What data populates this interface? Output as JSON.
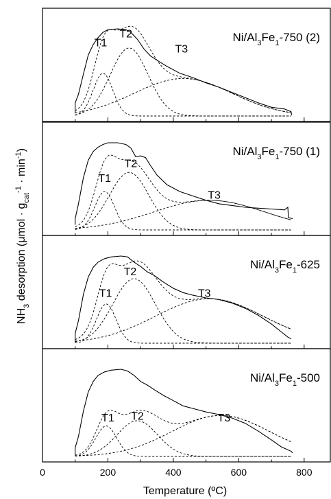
{
  "chart_data": {
    "type": "line",
    "xlabel": "Temperature (ºC)",
    "ylabel": {
      "main": "NH",
      "sub1": "3",
      "rest": " desorption (μmol · g",
      "sub2": "cat",
      "sup1": "-1",
      "mid": " · min",
      "sup2": "-1",
      "end": ")"
    },
    "xlim": [
      0,
      880
    ],
    "xticks": [
      "0",
      "200",
      "400",
      "600",
      "800"
    ],
    "xtick_values": [
      0,
      200,
      400,
      600,
      800
    ],
    "panels": [
      {
        "label": {
          "pre": "Ni/Al",
          "s1": "3",
          "mid": "Fe",
          "s2": "1",
          "post": "-750 (2)"
        },
        "peak_labels": [
          {
            "text": "T1",
            "x": 178,
            "y": 0.8
          },
          {
            "text": "T2",
            "x": 255,
            "y": 0.9
          },
          {
            "text": "T3",
            "x": 425,
            "y": 0.73
          }
        ],
        "total": [
          [
            100,
            0.03
          ],
          [
            100,
            0.15
          ],
          [
            110,
            0.25
          ],
          [
            125,
            0.48
          ],
          [
            140,
            0.7
          ],
          [
            155,
            0.82
          ],
          [
            170,
            0.9
          ],
          [
            185,
            0.96
          ],
          [
            200,
            0.99
          ],
          [
            230,
            1.0
          ],
          [
            255,
            0.99
          ],
          [
            270,
            0.96
          ],
          [
            290,
            0.88
          ],
          [
            310,
            0.77
          ],
          [
            330,
            0.69
          ],
          [
            350,
            0.64
          ],
          [
            380,
            0.57
          ],
          [
            420,
            0.49
          ],
          [
            460,
            0.44
          ],
          [
            500,
            0.38
          ],
          [
            540,
            0.33
          ],
          [
            580,
            0.27
          ],
          [
            620,
            0.21
          ],
          [
            660,
            0.15
          ],
          [
            700,
            0.1
          ],
          [
            740,
            0.08
          ],
          [
            760,
            0.05
          ],
          [
            762,
            0.01
          ]
        ],
        "peaks": [
          {
            "name": "T1",
            "center": 185,
            "height": 0.49,
            "width": 30
          },
          {
            "name": "T2",
            "center": 265,
            "height": 0.78,
            "width": 58
          },
          {
            "name": "T3",
            "center": 430,
            "height": 0.43,
            "width": 150
          }
        ]
      },
      {
        "label": {
          "pre": "Ni/Al",
          "s1": "3",
          "mid": "Fe",
          "s2": "1",
          "post": "-750 (1)"
        },
        "peak_labels": [
          {
            "text": "T1",
            "x": 190,
            "y": 0.55
          },
          {
            "text": "T2",
            "x": 270,
            "y": 0.72
          },
          {
            "text": "T3",
            "x": 525,
            "y": 0.36
          }
        ],
        "total": [
          [
            100,
            0.06
          ],
          [
            100,
            0.13
          ],
          [
            110,
            0.3
          ],
          [
            125,
            0.6
          ],
          [
            140,
            0.8
          ],
          [
            155,
            0.9
          ],
          [
            170,
            0.95
          ],
          [
            185,
            0.98
          ],
          [
            200,
            1.0
          ],
          [
            230,
            1.0
          ],
          [
            255,
            0.98
          ],
          [
            270,
            0.94
          ],
          [
            285,
            0.84
          ],
          [
            300,
            0.85
          ],
          [
            315,
            0.83
          ],
          [
            330,
            0.74
          ],
          [
            350,
            0.63
          ],
          [
            380,
            0.52
          ],
          [
            420,
            0.44
          ],
          [
            460,
            0.39
          ],
          [
            500,
            0.34
          ],
          [
            540,
            0.3
          ],
          [
            580,
            0.28
          ],
          [
            620,
            0.26
          ],
          [
            660,
            0.25
          ],
          [
            700,
            0.24
          ],
          [
            740,
            0.23
          ],
          [
            750,
            0.26
          ],
          [
            752,
            0.14
          ],
          [
            765,
            0.13
          ]
        ],
        "peaks": [
          {
            "name": "T1",
            "center": 190,
            "height": 0.44,
            "width": 30
          },
          {
            "name": "T2",
            "center": 265,
            "height": 0.66,
            "width": 60
          },
          {
            "name": "T3",
            "center": 510,
            "height": 0.34,
            "width": 170
          }
        ]
      },
      {
        "label": {
          "pre": "Ni/Al",
          "s1": "3",
          "mid": "Fe",
          "s2": "1",
          "post": "-625"
        },
        "peak_labels": [
          {
            "text": "T1",
            "x": 193,
            "y": 0.53
          },
          {
            "text": "T2",
            "x": 268,
            "y": 0.78
          },
          {
            "text": "T3",
            "x": 495,
            "y": 0.53
          }
        ],
        "total": [
          [
            100,
            0.01
          ],
          [
            100,
            0.11
          ],
          [
            110,
            0.26
          ],
          [
            125,
            0.56
          ],
          [
            140,
            0.76
          ],
          [
            155,
            0.87
          ],
          [
            170,
            0.93
          ],
          [
            190,
            0.97
          ],
          [
            210,
            0.99
          ],
          [
            240,
            1.0
          ],
          [
            260,
            0.99
          ],
          [
            280,
            0.93
          ],
          [
            300,
            0.88
          ],
          [
            320,
            0.82
          ],
          [
            340,
            0.78
          ],
          [
            370,
            0.7
          ],
          [
            400,
            0.63
          ],
          [
            430,
            0.58
          ],
          [
            460,
            0.55
          ],
          [
            500,
            0.52
          ],
          [
            540,
            0.5
          ],
          [
            580,
            0.46
          ],
          [
            620,
            0.4
          ],
          [
            660,
            0.32
          ],
          [
            700,
            0.22
          ],
          [
            730,
            0.13
          ],
          [
            750,
            0.07
          ],
          [
            760,
            0.05
          ]
        ],
        "peaks": [
          {
            "name": "T1",
            "center": 195,
            "height": 0.45,
            "width": 30
          },
          {
            "name": "T2",
            "center": 280,
            "height": 0.74,
            "width": 65
          },
          {
            "name": "T3",
            "center": 510,
            "height": 0.51,
            "width": 165
          }
        ]
      },
      {
        "label": {
          "pre": "Ni/Al",
          "s1": "3",
          "mid": "Fe",
          "s2": "1",
          "post": "-500"
        },
        "peak_labels": [
          {
            "text": "T1",
            "x": 200,
            "y": 0.4
          },
          {
            "text": "T2",
            "x": 290,
            "y": 0.42
          },
          {
            "text": "T3",
            "x": 555,
            "y": 0.4
          }
        ],
        "total": [
          [
            100,
            0.01
          ],
          [
            100,
            0.1
          ],
          [
            110,
            0.23
          ],
          [
            125,
            0.52
          ],
          [
            140,
            0.74
          ],
          [
            155,
            0.86
          ],
          [
            170,
            0.93
          ],
          [
            190,
            0.97
          ],
          [
            210,
            0.99
          ],
          [
            240,
            1.0
          ],
          [
            260,
            0.98
          ],
          [
            280,
            0.93
          ],
          [
            300,
            0.86
          ],
          [
            320,
            0.82
          ],
          [
            340,
            0.77
          ],
          [
            370,
            0.7
          ],
          [
            400,
            0.64
          ],
          [
            430,
            0.58
          ],
          [
            460,
            0.55
          ],
          [
            500,
            0.51
          ],
          [
            540,
            0.48
          ],
          [
            580,
            0.44
          ],
          [
            620,
            0.38
          ],
          [
            660,
            0.29
          ],
          [
            700,
            0.19
          ],
          [
            730,
            0.11
          ],
          [
            760,
            0.06
          ],
          [
            765,
            0.04
          ]
        ],
        "peaks": [
          {
            "name": "T1",
            "center": 195,
            "height": 0.35,
            "width": 32
          },
          {
            "name": "T2",
            "center": 290,
            "height": 0.41,
            "width": 62
          },
          {
            "name": "T3",
            "center": 545,
            "height": 0.47,
            "width": 150
          }
        ]
      }
    ]
  }
}
